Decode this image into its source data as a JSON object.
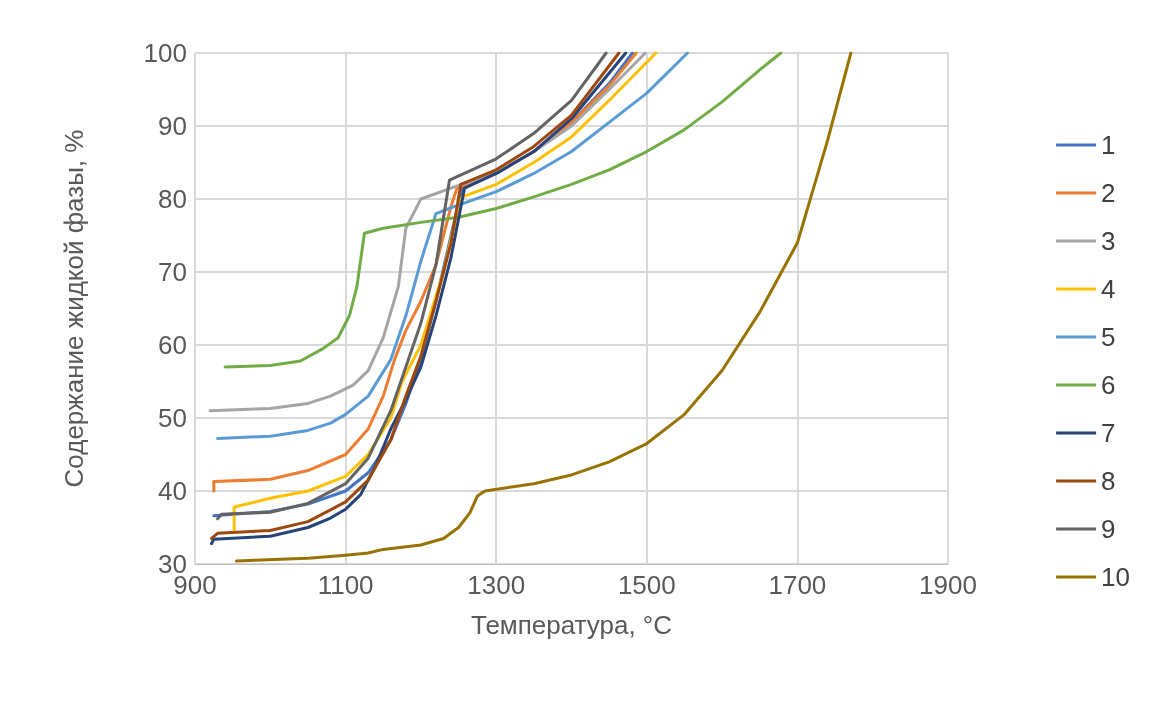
{
  "chart_data": {
    "type": "line",
    "xlabel": "Температура, °C",
    "ylabel": "Содержание жидкой фазы, %",
    "xlim": [
      900,
      1900
    ],
    "xticks": [
      900,
      1100,
      1300,
      1500,
      1700,
      1900
    ],
    "ylim": [
      30,
      100
    ],
    "yticks": [
      30,
      40,
      50,
      60,
      70,
      80,
      90,
      100
    ],
    "grid": true,
    "legend": "right",
    "marker": "none",
    "line_style": "solid",
    "series": [
      {
        "name": "1",
        "color": "#4472c4",
        "x": [
          925,
          1000,
          1050,
          1100,
          1130,
          1160,
          1180,
          1200,
          1220,
          1240,
          1255,
          1300,
          1350,
          1400,
          1450,
          1481
        ],
        "values": [
          36.6,
          37.2,
          38.2,
          40,
          42.5,
          47,
          52,
          58,
          66,
          75,
          81.5,
          83.5,
          86.5,
          90.5,
          95.8,
          100
        ]
      },
      {
        "name": "2",
        "color": "#ed7d31",
        "x": [
          925,
          925,
          1000,
          1050,
          1100,
          1130,
          1150,
          1165,
          1180,
          1200,
          1220,
          1240,
          1248,
          1300,
          1350,
          1400,
          1450,
          1486
        ],
        "values": [
          40,
          41.3,
          41.6,
          42.8,
          45,
          48.5,
          53,
          58,
          62,
          66,
          71,
          79,
          81.5,
          83.5,
          86.5,
          90.5,
          95.5,
          100
        ]
      },
      {
        "name": "3",
        "color": "#a5a5a5",
        "x": [
          920,
          1000,
          1050,
          1080,
          1110,
          1130,
          1150,
          1170,
          1180,
          1200,
          1240,
          1300,
          1350,
          1400,
          1450,
          1498
        ],
        "values": [
          51,
          51.3,
          52,
          53,
          54.5,
          56.5,
          61,
          68,
          76,
          80,
          81.5,
          83.5,
          86.5,
          90,
          95,
          100
        ]
      },
      {
        "name": "4",
        "color": "#ffc000",
        "x": [
          952,
          952,
          1000,
          1050,
          1100,
          1130,
          1160,
          1175,
          1200,
          1230,
          1250,
          1255,
          1300,
          1350,
          1400,
          1450,
          1512
        ],
        "values": [
          34.5,
          37.8,
          39,
          40,
          42,
          45,
          50,
          55,
          60,
          70,
          79,
          80.3,
          82,
          85,
          88.5,
          93.5,
          100
        ]
      },
      {
        "name": "5",
        "color": "#5b9bd5",
        "x": [
          930,
          1000,
          1050,
          1080,
          1100,
          1130,
          1160,
          1180,
          1200,
          1220,
          1240,
          1300,
          1350,
          1400,
          1450,
          1500,
          1554
        ],
        "values": [
          47.2,
          47.5,
          48.3,
          49.3,
          50.5,
          53,
          58,
          64,
          71.5,
          78,
          78.8,
          81,
          83.5,
          86.5,
          90.5,
          94.5,
          100
        ]
      },
      {
        "name": "6",
        "color": "#70ad47",
        "x": [
          940,
          1000,
          1040,
          1070,
          1090,
          1105,
          1115,
          1125,
          1150,
          1200,
          1250,
          1300,
          1350,
          1400,
          1450,
          1500,
          1550,
          1600,
          1650,
          1678
        ],
        "values": [
          57,
          57.2,
          57.8,
          59.5,
          61,
          64,
          68,
          75.3,
          76,
          76.8,
          77.5,
          78.7,
          80.3,
          82,
          84,
          86.5,
          89.5,
          93.3,
          97.7,
          100
        ]
      },
      {
        "name": "7",
        "color": "#264478",
        "x": [
          922,
          925,
          1000,
          1050,
          1080,
          1100,
          1120,
          1140,
          1160,
          1180,
          1200,
          1220,
          1240,
          1258,
          1300,
          1350,
          1400,
          1472
        ],
        "values": [
          32.8,
          33.4,
          33.8,
          35,
          36.3,
          37.5,
          39.5,
          43.5,
          48.5,
          52.5,
          57,
          64,
          72,
          81.5,
          83.5,
          86.5,
          91,
          100
        ]
      },
      {
        "name": "8",
        "color": "#9e480e",
        "x": [
          922,
          930,
          1000,
          1050,
          1100,
          1130,
          1160,
          1180,
          1200,
          1220,
          1240,
          1253,
          1300,
          1350,
          1400,
          1463
        ],
        "values": [
          33.5,
          34.2,
          34.6,
          35.8,
          38.5,
          41.5,
          47,
          53,
          58.5,
          66,
          74,
          82,
          84,
          87.2,
          91.5,
          100
        ]
      },
      {
        "name": "9",
        "color": "#636363",
        "x": [
          930,
          935,
          1000,
          1050,
          1100,
          1130,
          1160,
          1180,
          1200,
          1220,
          1238,
          1300,
          1350,
          1400,
          1446
        ],
        "values": [
          36.2,
          36.8,
          37.1,
          38.3,
          41,
          44.5,
          51,
          57,
          63,
          71,
          82.6,
          85.5,
          89,
          93.5,
          100
        ]
      },
      {
        "name": "10",
        "color": "#997300",
        "x": [
          955,
          1050,
          1100,
          1130,
          1150,
          1200,
          1230,
          1250,
          1265,
          1275,
          1285,
          1350,
          1400,
          1450,
          1500,
          1550,
          1600,
          1650,
          1700,
          1740,
          1771
        ],
        "values": [
          30.4,
          30.8,
          31.2,
          31.5,
          32,
          32.6,
          33.5,
          35,
          37,
          39.3,
          40,
          41,
          42.2,
          44,
          46.5,
          50.5,
          56.5,
          64.5,
          74,
          88,
          100
        ]
      }
    ]
  }
}
